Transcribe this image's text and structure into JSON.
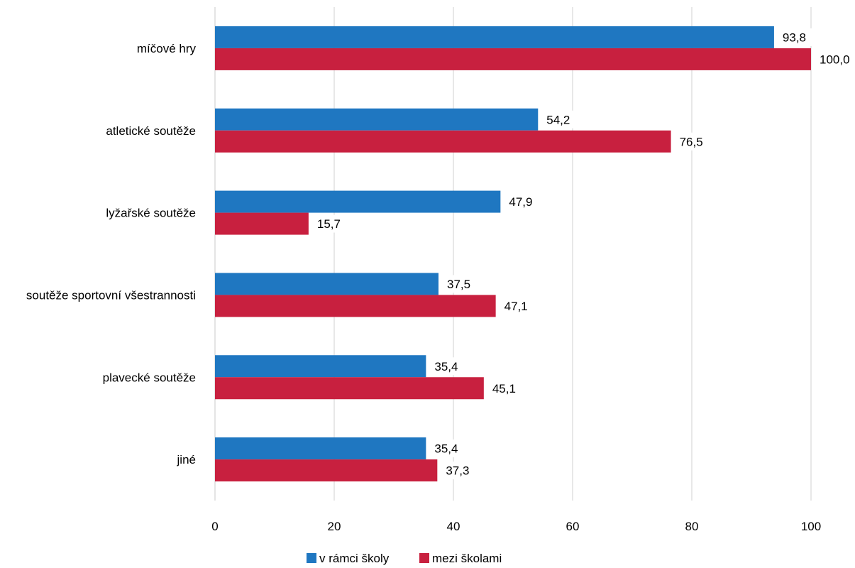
{
  "chart_data": {
    "type": "bar",
    "orientation": "horizontal",
    "title": "",
    "xlabel": "",
    "ylabel": "",
    "xlim": [
      0,
      100
    ],
    "x_ticks": [
      0,
      20,
      40,
      60,
      80,
      100
    ],
    "grid": "vertical",
    "legend_position": "bottom",
    "categories": [
      "míčové hry",
      "atletické soutěže",
      "lyžařské soutěže",
      "soutěže sportovní všestrannosti",
      "plavecké soutěže",
      "jiné"
    ],
    "series": [
      {
        "name": "v rámci školy",
        "color": "#1f77c1",
        "values": [
          93.8,
          54.2,
          47.9,
          37.5,
          35.4,
          35.4
        ],
        "labels": [
          "93,8",
          "54,2",
          "47,9",
          "37,5",
          "35,4",
          "35,4"
        ]
      },
      {
        "name": "mezi školami",
        "color": "#c8203f",
        "values": [
          100.0,
          76.5,
          15.7,
          47.1,
          45.1,
          37.3
        ],
        "labels": [
          "100,0",
          "76,5",
          "15,7",
          "47,1",
          "45,1",
          "37,3"
        ]
      }
    ]
  }
}
